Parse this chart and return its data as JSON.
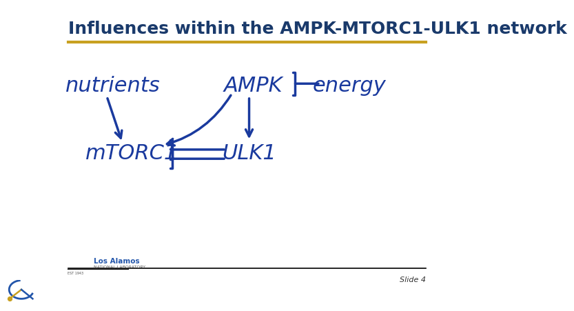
{
  "title": "Influences within the AMPK-MTORC1-ULK1 network",
  "title_color": "#1a3a6b",
  "title_fontsize": 18,
  "gold_line_color": "#c8a020",
  "bg_color": "#ffffff",
  "handwriting_color": "#1a3a9e",
  "slide_text": "Slide 4",
  "footer_line_color": "#000000"
}
